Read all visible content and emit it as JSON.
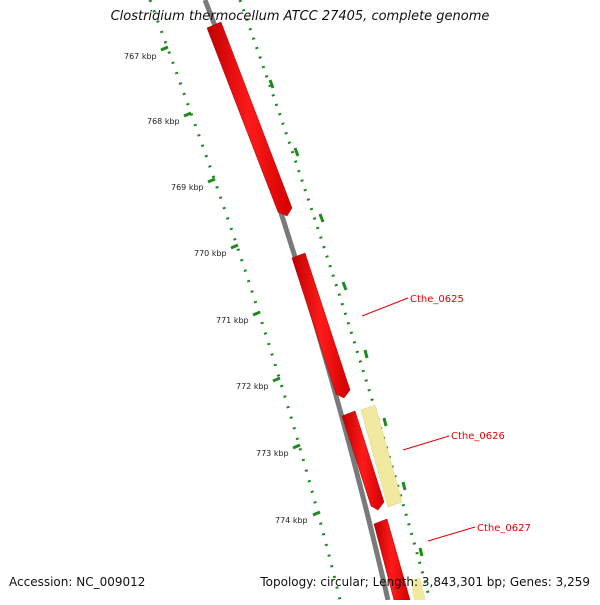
{
  "title": "Clostridium thermocellum ATCC 27405, complete genome",
  "footer": {
    "accession": "Accession: NC_009012",
    "topology": "Topology: circular; Length: 3,843,301 bp; Genes: 3,259"
  },
  "tick_labels": [
    "767 kbp",
    "768 kbp",
    "769 kbp",
    "770 kbp",
    "771 kbp",
    "772 kbp",
    "773 kbp",
    "774 kbp"
  ],
  "gene_labels": [
    "Cthe_0625",
    "Cthe_0626",
    "Cthe_0627"
  ],
  "colors": {
    "gene_forward": "#ff0000",
    "gene_highlight": "#f2e9a0",
    "backbone": "#808080",
    "tick": "#1e8a1e",
    "label": "#e00000"
  }
}
